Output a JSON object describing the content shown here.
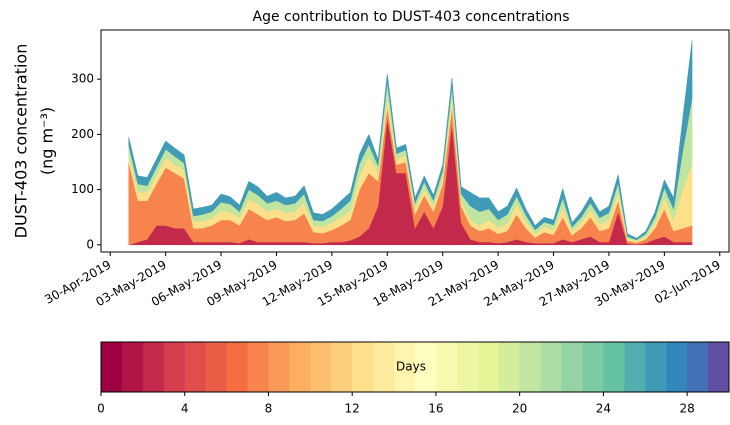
{
  "chart_data": {
    "type": "stacked_area",
    "title": "Age contribution to DUST-403 concentrations",
    "ylabel": [
      "DUST-403 concentration",
      "(ng m⁻³)"
    ],
    "x": [
      "2019-05-01T00:00Z",
      "2019-05-01T12:00Z",
      "2019-05-02T00:00Z",
      "2019-05-02T12:00Z",
      "2019-05-03T00:00Z",
      "2019-05-03T12:00Z",
      "2019-05-04T00:00Z",
      "2019-05-04T12:00Z",
      "2019-05-05T00:00Z",
      "2019-05-05T12:00Z",
      "2019-05-06T00:00Z",
      "2019-05-06T12:00Z",
      "2019-05-07T00:00Z",
      "2019-05-07T12:00Z",
      "2019-05-08T00:00Z",
      "2019-05-08T12:00Z",
      "2019-05-09T00:00Z",
      "2019-05-09T12:00Z",
      "2019-05-10T00:00Z",
      "2019-05-10T12:00Z",
      "2019-05-11T00:00Z",
      "2019-05-11T12:00Z",
      "2019-05-12T00:00Z",
      "2019-05-12T12:00Z",
      "2019-05-13T00:00Z",
      "2019-05-13T12:00Z",
      "2019-05-14T00:00Z",
      "2019-05-14T12:00Z",
      "2019-05-15T00:00Z",
      "2019-05-15T12:00Z",
      "2019-05-16T00:00Z",
      "2019-05-16T12:00Z",
      "2019-05-17T00:00Z",
      "2019-05-17T12:00Z",
      "2019-05-18T00:00Z",
      "2019-05-18T12:00Z",
      "2019-05-19T00:00Z",
      "2019-05-19T12:00Z",
      "2019-05-20T00:00Z",
      "2019-05-20T12:00Z",
      "2019-05-21T00:00Z",
      "2019-05-21T12:00Z",
      "2019-05-22T00:00Z",
      "2019-05-22T12:00Z",
      "2019-05-23T00:00Z",
      "2019-05-23T12:00Z",
      "2019-05-24T00:00Z",
      "2019-05-24T12:00Z",
      "2019-05-25T00:00Z",
      "2019-05-25T12:00Z",
      "2019-05-26T00:00Z",
      "2019-05-26T12:00Z",
      "2019-05-27T00:00Z",
      "2019-05-27T12:00Z",
      "2019-05-28T00:00Z",
      "2019-05-28T12:00Z",
      "2019-05-29T00:00Z",
      "2019-05-29T12:00Z",
      "2019-05-30T00:00Z",
      "2019-05-30T12:00Z",
      "2019-05-31T00:00Z",
      "2019-05-31T12:00Z"
    ],
    "series": [
      {
        "color": "#c2294a",
        "values": [
          0,
          5,
          10,
          35,
          35,
          30,
          30,
          5,
          5,
          5,
          5,
          5,
          3,
          10,
          5,
          5,
          5,
          5,
          5,
          5,
          3,
          3,
          5,
          5,
          8,
          15,
          30,
          70,
          230,
          130,
          130,
          30,
          60,
          30,
          70,
          220,
          40,
          10,
          5,
          5,
          3,
          5,
          10,
          5,
          3,
          3,
          3,
          10,
          5,
          10,
          15,
          5,
          5,
          60,
          2,
          1,
          3,
          10,
          15,
          5,
          5,
          5
        ]
      },
      {
        "color": "#f7834d",
        "values": [
          150,
          75,
          70,
          75,
          105,
          100,
          90,
          25,
          25,
          30,
          40,
          40,
          32,
          55,
          50,
          40,
          45,
          38,
          40,
          52,
          20,
          18,
          22,
          30,
          37,
          85,
          100,
          45,
          20,
          15,
          20,
          25,
          30,
          30,
          40,
          30,
          30,
          25,
          20,
          25,
          17,
          20,
          45,
          25,
          10,
          20,
          15,
          40,
          12,
          20,
          35,
          20,
          25,
          20,
          5,
          3,
          7,
          20,
          50,
          20,
          25,
          30
        ]
      },
      {
        "color": "#fee08b",
        "values": [
          15,
          15,
          15,
          15,
          18,
          15,
          15,
          12,
          13,
          13,
          17,
          15,
          13,
          18,
          18,
          15,
          15,
          15,
          15,
          18,
          12,
          12,
          13,
          15,
          17,
          25,
          30,
          15,
          20,
          10,
          12,
          10,
          12,
          10,
          12,
          20,
          10,
          10,
          10,
          15,
          10,
          15,
          18,
          12,
          7,
          10,
          9,
          18,
          8,
          10,
          13,
          12,
          15,
          17,
          4,
          3,
          5,
          10,
          20,
          20,
          70,
          110
        ]
      },
      {
        "color": "#bfe5a0",
        "values": [
          15,
          15,
          12,
          15,
          15,
          15,
          13,
          10,
          12,
          12,
          15,
          14,
          12,
          17,
          17,
          15,
          15,
          14,
          15,
          17,
          10,
          10,
          12,
          15,
          18,
          22,
          22,
          13,
          25,
          10,
          10,
          10,
          12,
          10,
          12,
          17,
          12,
          25,
          25,
          20,
          15,
          15,
          15,
          12,
          7,
          8,
          9,
          17,
          7,
          10,
          13,
          12,
          13,
          15,
          4,
          2,
          5,
          10,
          18,
          20,
          70,
          120
        ]
      },
      {
        "color": "#409bb6",
        "values": [
          15,
          15,
          15,
          15,
          15,
          15,
          15,
          13,
          13,
          12,
          15,
          13,
          12,
          15,
          15,
          13,
          15,
          13,
          13,
          15,
          13,
          12,
          13,
          15,
          15,
          18,
          18,
          12,
          15,
          10,
          10,
          10,
          11,
          10,
          11,
          15,
          13,
          25,
          25,
          20,
          15,
          15,
          15,
          11,
          8,
          9,
          9,
          17,
          8,
          10,
          12,
          11,
          12,
          15,
          5,
          3,
          5,
          10,
          15,
          20,
          60,
          105
        ]
      }
    ],
    "xlim": [
      "2019-04-29T12:00Z",
      "2019-06-02T12:00Z"
    ],
    "xticks": [
      {
        "value": "2019-04-30T00:00Z",
        "label": "30-Apr-2019"
      },
      {
        "value": "2019-05-03T00:00Z",
        "label": "03-May-2019"
      },
      {
        "value": "2019-05-06T00:00Z",
        "label": "06-May-2019"
      },
      {
        "value": "2019-05-09T00:00Z",
        "label": "09-May-2019"
      },
      {
        "value": "2019-05-12T00:00Z",
        "label": "12-May-2019"
      },
      {
        "value": "2019-05-15T00:00Z",
        "label": "15-May-2019"
      },
      {
        "value": "2019-05-18T00:00Z",
        "label": "18-May-2019"
      },
      {
        "value": "2019-05-21T00:00Z",
        "label": "21-May-2019"
      },
      {
        "value": "2019-05-24T00:00Z",
        "label": "24-May-2019"
      },
      {
        "value": "2019-05-27T00:00Z",
        "label": "27-May-2019"
      },
      {
        "value": "2019-05-30T00:00Z",
        "label": "30-May-2019"
      },
      {
        "value": "2019-06-02T00:00Z",
        "label": "02-Jun-2019"
      }
    ],
    "ylim": [
      -13,
      389
    ],
    "yticks": [
      0,
      100,
      200,
      300
    ],
    "colorbar": {
      "label": "Days",
      "lim": [
        0,
        30
      ],
      "ticks": [
        0,
        4,
        8,
        12,
        16,
        20,
        24,
        28
      ],
      "colors": [
        "#9e0142",
        "#b01546",
        "#c2294a",
        "#d53e4f",
        "#df4e4b",
        "#ea5e47",
        "#f46d43",
        "#f7834d",
        "#fa9857",
        "#fdae61",
        "#fdbf6f",
        "#fdcf7d",
        "#fee08b",
        "#feeb9d",
        "#fff5ae",
        "#ffffbf",
        "#f6fbb0",
        "#eef8a4",
        "#e6f598",
        "#d2ed9c",
        "#bfe5a0",
        "#abdda4",
        "#94d4a4",
        "#7dcba5",
        "#66c2a5",
        "#53aeae",
        "#409bb6",
        "#3288bd",
        "#4470b5",
        "#5e4fa2"
      ]
    }
  }
}
